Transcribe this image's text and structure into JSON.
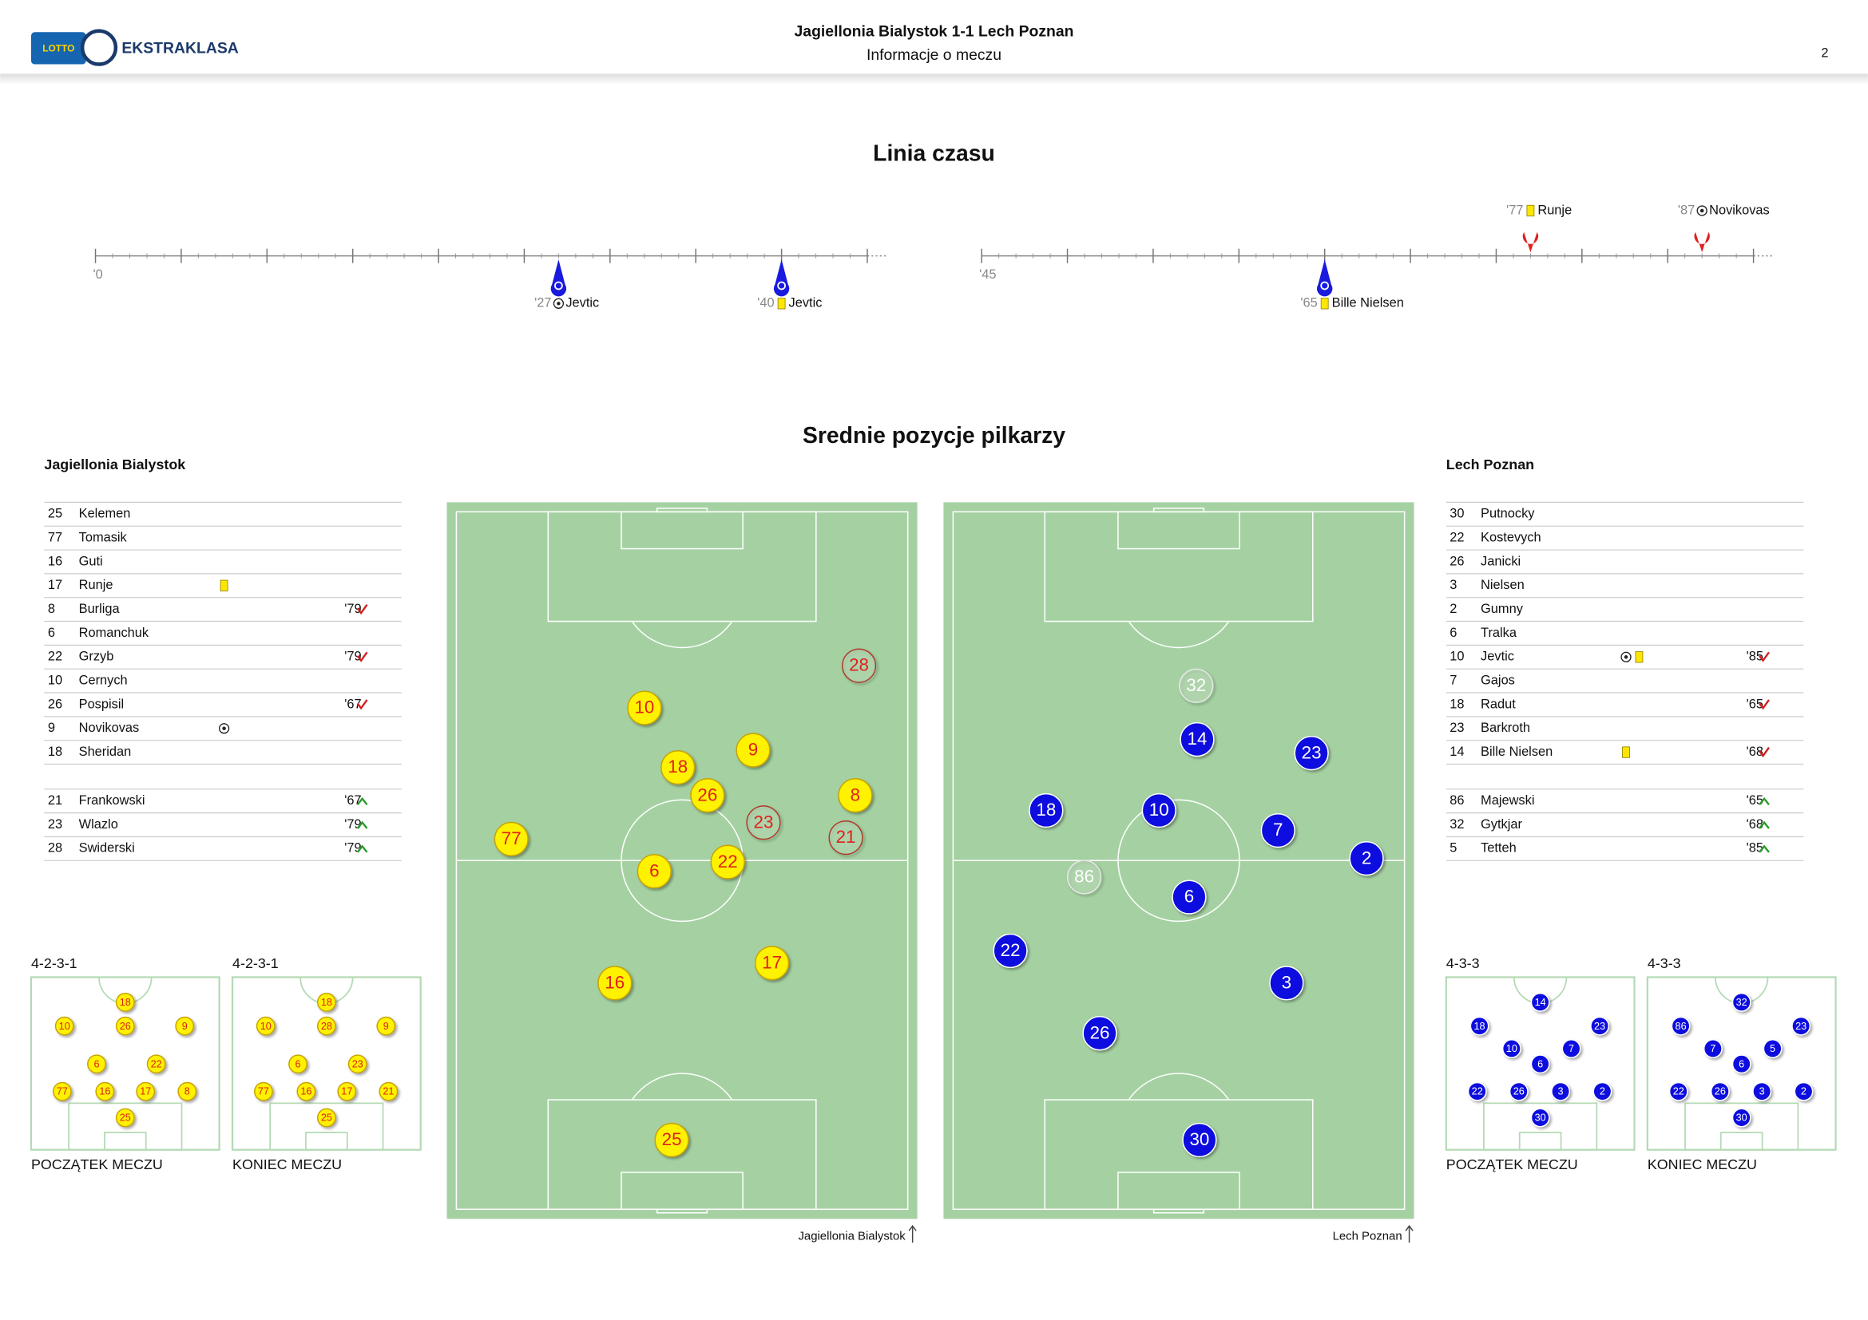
{
  "header": {
    "logo_badge": "LOTTO",
    "logo": "EKSTRAKLASA",
    "title": "Jagiellonia Bialystok 1-1 Lech Poznan",
    "subtitle": "Informacje o meczu",
    "page": "2"
  },
  "timeline": {
    "title": "Linia czasu",
    "halves": [
      {
        "start": {
          "value": 0,
          "label": "'0"
        },
        "range": [
          0,
          45
        ],
        "ticks": [
          0,
          5,
          10,
          15,
          20,
          25,
          30,
          35,
          40,
          45
        ]
      },
      {
        "start": {
          "value": 45,
          "label": "'45"
        },
        "range": [
          45,
          90
        ],
        "ticks": [
          45,
          50,
          55,
          60,
          65,
          70,
          75,
          80,
          85,
          90
        ]
      }
    ],
    "events": [
      {
        "minute": 27,
        "minute_label": "'27",
        "event": "goal",
        "player": "Jevtic",
        "team": "away"
      },
      {
        "minute": 40,
        "minute_label": "'40",
        "event": "yellow",
        "player": "Jevtic",
        "team": "away"
      },
      {
        "minute": 65,
        "minute_label": "'65",
        "event": "yellow",
        "player": "Bille Nielsen",
        "team": "away"
      },
      {
        "minute": 77,
        "minute_label": "'77",
        "event": "yellow",
        "player": "Runje",
        "team": "home"
      },
      {
        "minute": 87,
        "minute_label": "'87",
        "event": "goal",
        "player": "Novikovas",
        "team": "home"
      }
    ]
  },
  "positions": {
    "title": "Srednie pozycje pilkarzy",
    "teams": [
      {
        "name": "Jagiellonia Bialystok",
        "side": "home",
        "lineup": [
          {
            "number": 25,
            "name": "Kelemen"
          },
          {
            "number": 77,
            "name": "Tomasik"
          },
          {
            "number": 16,
            "name": "Guti"
          },
          {
            "number": 17,
            "name": "Runje",
            "icons": [
              "yellow"
            ]
          },
          {
            "number": 8,
            "name": "Burliga",
            "sub": {
              "minute": "'79",
              "dir": "out"
            }
          },
          {
            "number": 6,
            "name": "Romanchuk"
          },
          {
            "number": 22,
            "name": "Grzyb",
            "sub": {
              "minute": "'79",
              "dir": "out"
            }
          },
          {
            "number": 10,
            "name": "Cernych"
          },
          {
            "number": 26,
            "name": "Pospisil",
            "sub": {
              "minute": "'67",
              "dir": "out"
            }
          },
          {
            "number": 9,
            "name": "Novikovas",
            "icons": [
              "goal"
            ]
          },
          {
            "number": 18,
            "name": "Sheridan"
          }
        ],
        "subs": [
          {
            "number": 21,
            "name": "Frankowski",
            "sub": {
              "minute": "'67",
              "dir": "in"
            }
          },
          {
            "number": 23,
            "name": "Wlazlo",
            "sub": {
              "minute": "'79",
              "dir": "in"
            }
          },
          {
            "number": 28,
            "name": "Swiderski",
            "sub": {
              "minute": "'79",
              "dir": "in"
            }
          }
        ],
        "pitch": [
          {
            "number": 28,
            "x": 87.6,
            "y": 22.8,
            "sub": true
          },
          {
            "number": 10,
            "x": 42.0,
            "y": 28.7
          },
          {
            "number": 9,
            "x": 65.1,
            "y": 34.6
          },
          {
            "number": 18,
            "x": 49.1,
            "y": 37.0
          },
          {
            "number": 26,
            "x": 55.4,
            "y": 40.9
          },
          {
            "number": 23,
            "x": 67.3,
            "y": 44.7,
            "sub": true
          },
          {
            "number": 8,
            "x": 86.8,
            "y": 40.9
          },
          {
            "number": 21,
            "x": 84.8,
            "y": 46.8,
            "sub": true
          },
          {
            "number": 77,
            "x": 13.7,
            "y": 47.0
          },
          {
            "number": 6,
            "x": 44.1,
            "y": 51.5
          },
          {
            "number": 22,
            "x": 59.7,
            "y": 50.2
          },
          {
            "number": 17,
            "x": 69.1,
            "y": 64.3
          },
          {
            "number": 16,
            "x": 35.7,
            "y": 67.1
          },
          {
            "number": 25,
            "x": 47.8,
            "y": 89.0
          }
        ],
        "formations": [
          {
            "name": "4-2-3-1",
            "caption": "POCZĄTEK MECZU",
            "players": [
              {
                "number": 18,
                "x": 50,
                "y": 14.5
              },
              {
                "number": 10,
                "x": 17.7,
                "y": 28.3
              },
              {
                "number": 26,
                "x": 50,
                "y": 28.3
              },
              {
                "number": 9,
                "x": 81.6,
                "y": 28.3
              },
              {
                "number": 6,
                "x": 34.8,
                "y": 50.3
              },
              {
                "number": 22,
                "x": 66.5,
                "y": 50.3
              },
              {
                "number": 77,
                "x": 16.5,
                "y": 66.2
              },
              {
                "number": 16,
                "x": 39.2,
                "y": 66.2
              },
              {
                "number": 17,
                "x": 60.8,
                "y": 66.2
              },
              {
                "number": 8,
                "x": 82.9,
                "y": 66.2
              },
              {
                "number": 25,
                "x": 50,
                "y": 81.4
              }
            ]
          },
          {
            "name": "4-2-3-1",
            "caption": "KONIEC MECZU",
            "players": [
              {
                "number": 18,
                "x": 50,
                "y": 14.5
              },
              {
                "number": 10,
                "x": 17.7,
                "y": 28.3
              },
              {
                "number": 28,
                "x": 50,
                "y": 28.3
              },
              {
                "number": 9,
                "x": 81.6,
                "y": 28.3
              },
              {
                "number": 6,
                "x": 34.8,
                "y": 50.3
              },
              {
                "number": 23,
                "x": 66.5,
                "y": 50.3
              },
              {
                "number": 77,
                "x": 16.5,
                "y": 66.2
              },
              {
                "number": 16,
                "x": 39.2,
                "y": 66.2
              },
              {
                "number": 17,
                "x": 60.8,
                "y": 66.2
              },
              {
                "number": 21,
                "x": 82.9,
                "y": 66.2
              },
              {
                "number": 25,
                "x": 50,
                "y": 81.4
              }
            ]
          }
        ]
      },
      {
        "name": "Lech Poznan",
        "side": "away",
        "lineup": [
          {
            "number": 30,
            "name": "Putnocky"
          },
          {
            "number": 22,
            "name": "Kostevych"
          },
          {
            "number": 26,
            "name": "Janicki"
          },
          {
            "number": 3,
            "name": "Nielsen"
          },
          {
            "number": 2,
            "name": "Gumny"
          },
          {
            "number": 6,
            "name": "Tralka"
          },
          {
            "number": 10,
            "name": "Jevtic",
            "icons": [
              "goal",
              "yellow"
            ],
            "sub": {
              "minute": "'85",
              "dir": "out"
            }
          },
          {
            "number": 7,
            "name": "Gajos"
          },
          {
            "number": 18,
            "name": "Radut",
            "sub": {
              "minute": "'65",
              "dir": "out"
            }
          },
          {
            "number": 23,
            "name": "Barkroth"
          },
          {
            "number": 14,
            "name": "Bille Nielsen",
            "icons": [
              "yellow"
            ],
            "sub": {
              "minute": "'68",
              "dir": "out"
            }
          }
        ],
        "subs": [
          {
            "number": 86,
            "name": "Majewski",
            "sub": {
              "minute": "'65",
              "dir": "in"
            }
          },
          {
            "number": 32,
            "name": "Gytkjar",
            "sub": {
              "minute": "'68",
              "dir": "in"
            }
          },
          {
            "number": 5,
            "name": "Tetteh",
            "sub": {
              "minute": "'85",
              "dir": "in"
            }
          }
        ],
        "pitch": [
          {
            "number": 32,
            "x": 53.7,
            "y": 25.6,
            "sub": true
          },
          {
            "number": 14,
            "x": 53.9,
            "y": 33.1
          },
          {
            "number": 23,
            "x": 78.2,
            "y": 35.0
          },
          {
            "number": 18,
            "x": 21.8,
            "y": 43.0
          },
          {
            "number": 10,
            "x": 45.8,
            "y": 43.0
          },
          {
            "number": 7,
            "x": 71.1,
            "y": 45.8
          },
          {
            "number": 2,
            "x": 89.9,
            "y": 49.7
          },
          {
            "number": 86,
            "x": 29.9,
            "y": 52.3,
            "sub": true
          },
          {
            "number": 6,
            "x": 52.2,
            "y": 55.1
          },
          {
            "number": 22,
            "x": 14.2,
            "y": 62.6
          },
          {
            "number": 3,
            "x": 72.9,
            "y": 67.1
          },
          {
            "number": 26,
            "x": 33.2,
            "y": 74.1
          },
          {
            "number": 30,
            "x": 54.4,
            "y": 89.0
          }
        ],
        "formations": [
          {
            "name": "4-3-3",
            "caption": "POCZĄTEK MECZU",
            "players": [
              {
                "number": 14,
                "x": 50,
                "y": 14.5
              },
              {
                "number": 18,
                "x": 17.7,
                "y": 28.3
              },
              {
                "number": 23,
                "x": 81.6,
                "y": 28.3
              },
              {
                "number": 10,
                "x": 34.8,
                "y": 41.4
              },
              {
                "number": 7,
                "x": 66.5,
                "y": 41.4
              },
              {
                "number": 6,
                "x": 50,
                "y": 50.3
              },
              {
                "number": 22,
                "x": 16.5,
                "y": 66.2
              },
              {
                "number": 26,
                "x": 38.6,
                "y": 66.2
              },
              {
                "number": 3,
                "x": 60.8,
                "y": 66.2
              },
              {
                "number": 2,
                "x": 83,
                "y": 66.2
              },
              {
                "number": 30,
                "x": 50,
                "y": 81.4
              }
            ]
          },
          {
            "name": "4-3-3",
            "caption": "KONIEC MECZU",
            "players": [
              {
                "number": 32,
                "x": 50,
                "y": 14.5
              },
              {
                "number": 86,
                "x": 17.7,
                "y": 28.3
              },
              {
                "number": 23,
                "x": 81.6,
                "y": 28.3
              },
              {
                "number": 7,
                "x": 34.8,
                "y": 41.4
              },
              {
                "number": 5,
                "x": 66.5,
                "y": 41.4
              },
              {
                "number": 6,
                "x": 50,
                "y": 50.3
              },
              {
                "number": 22,
                "x": 16.5,
                "y": 66.2
              },
              {
                "number": 26,
                "x": 38.6,
                "y": 66.2
              },
              {
                "number": 3,
                "x": 60.8,
                "y": 66.2
              },
              {
                "number": 2,
                "x": 83,
                "y": 66.2
              },
              {
                "number": 30,
                "x": 50,
                "y": 81.4
              }
            ]
          }
        ]
      }
    ]
  }
}
